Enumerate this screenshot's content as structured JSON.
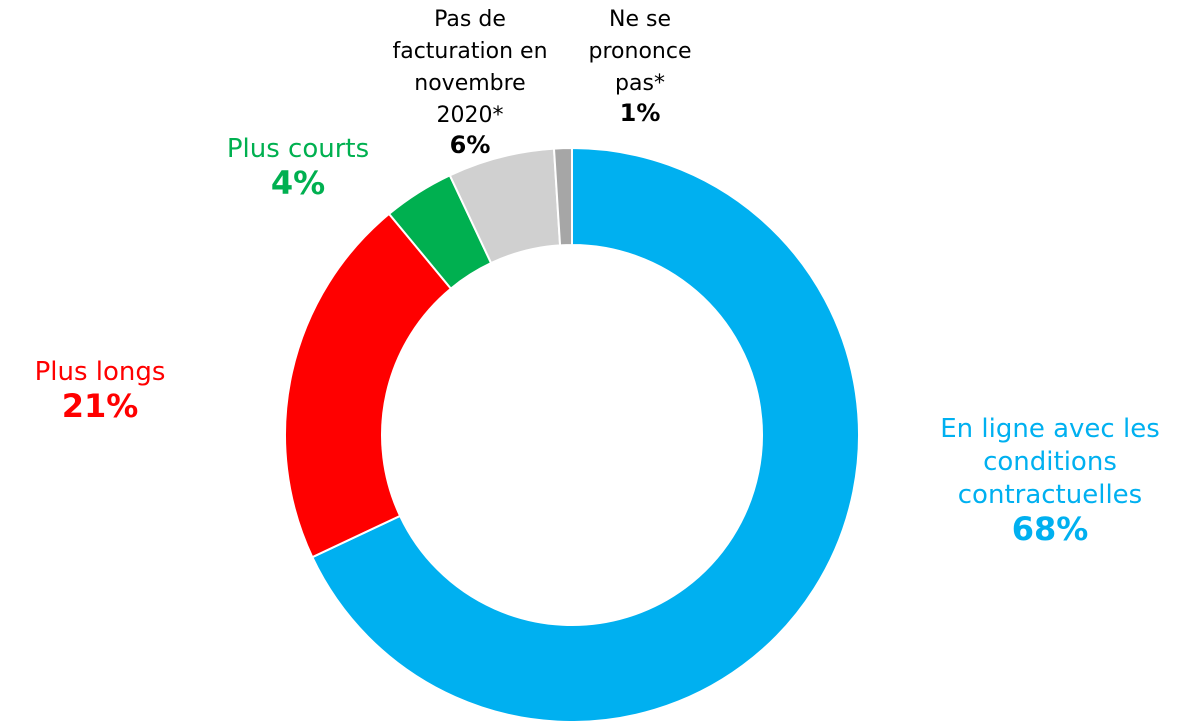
{
  "chart_data": {
    "type": "donut",
    "categories": [
      "En ligne avec les conditions contractuelles",
      "Plus longs",
      "Plus courts",
      "Pas de facturation en novembre 2020*",
      "Ne se prononce pas*"
    ],
    "values": [
      68,
      21,
      4,
      6,
      1
    ],
    "value_labels": [
      "68%",
      "21%",
      "4%",
      "6%",
      "1%"
    ],
    "colors": [
      "#00b0f0",
      "#ff0000",
      "#00b050",
      "#d0d0d0",
      "#a6a6a6"
    ],
    "label_colors": [
      "#00b0f0",
      "#ff0000",
      "#00b050",
      "#000000",
      "#000000"
    ]
  }
}
